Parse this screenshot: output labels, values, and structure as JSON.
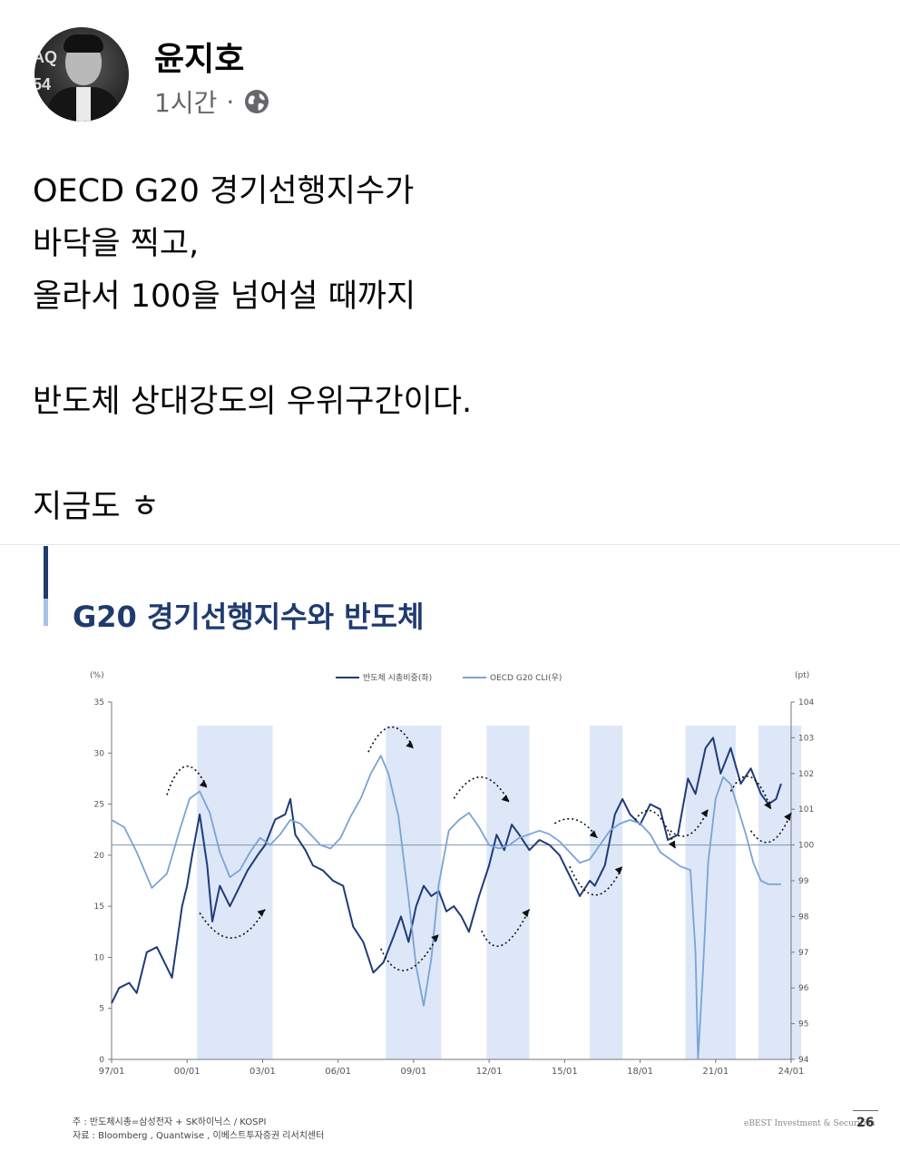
{
  "post": {
    "author": "윤지호",
    "time": "1시간",
    "separator": "·",
    "privacy_icon": "globe-icon",
    "avatar_badge": "AQ\n54",
    "lines": [
      "OECD G20 경기선행지수가",
      "바닥을 찍고,",
      "올라서 100을 넘어설 때까지",
      "",
      "반도체 상대강도의 우위구간이다.",
      "",
      "지금도 ㅎ"
    ]
  },
  "slide": {
    "title": "G20 경기선행지수와 반도체",
    "note_line1": "주 : 반도체시총=삼성전자 + SK하이닉스 / KOSPI",
    "note_line2": "자료 : Bloomberg , Quantwise , 이베스트투자증권 리서치센터",
    "brand": "eBEST Investment & Securities",
    "page": "26"
  },
  "chart_data": {
    "type": "line",
    "left_axis_unit": "(%)",
    "right_axis_unit": "(pt)",
    "left_ticks": [
      "35",
      "30",
      "25",
      "20",
      "15",
      "10",
      "5",
      "0"
    ],
    "right_ticks": [
      "104",
      "103",
      "102",
      "101",
      "100",
      "99",
      "98",
      "97",
      "96",
      "95",
      "94"
    ],
    "x_ticks": [
      "97/01",
      "00/01",
      "03/01",
      "06/01",
      "09/01",
      "12/01",
      "15/01",
      "18/01",
      "21/01",
      "24/01"
    ],
    "ylim_left": [
      0,
      35
    ],
    "ylim_right": [
      94,
      104
    ],
    "xlim": [
      1997.0,
      2024.0
    ],
    "reference_line_right": 100,
    "shaded_periods": [
      [
        2000.4,
        2003.4
      ],
      [
        2007.9,
        2010.1
      ],
      [
        2011.9,
        2013.6
      ],
      [
        2016.0,
        2017.3
      ],
      [
        2019.8,
        2021.8
      ],
      [
        2022.7,
        2024.4
      ]
    ],
    "series": [
      {
        "name": "반도체 시총비중(좌)",
        "axis": "left",
        "color": "#1f3b7a",
        "x": [
          1997.0,
          1997.3,
          1997.7,
          1998.0,
          1998.4,
          1998.8,
          1999.0,
          1999.4,
          1999.8,
          2000.0,
          2000.2,
          2000.5,
          2000.8,
          2001.0,
          2001.3,
          2001.7,
          2002.0,
          2002.4,
          2002.8,
          2003.1,
          2003.5,
          2003.9,
          2004.1,
          2004.3,
          2004.7,
          2005.0,
          2005.4,
          2005.8,
          2006.2,
          2006.6,
          2007.0,
          2007.4,
          2007.8,
          2008.2,
          2008.5,
          2008.8,
          2009.1,
          2009.4,
          2009.7,
          2010.0,
          2010.3,
          2010.6,
          2010.9,
          2011.2,
          2011.6,
          2012.0,
          2012.3,
          2012.6,
          2012.9,
          2013.2,
          2013.6,
          2014.0,
          2014.4,
          2014.8,
          2015.2,
          2015.6,
          2016.0,
          2016.2,
          2016.6,
          2017.0,
          2017.3,
          2017.6,
          2018.0,
          2018.4,
          2018.8,
          2019.1,
          2019.5,
          2019.9,
          2020.2,
          2020.6,
          2020.9,
          2021.2,
          2021.6,
          2022.0,
          2022.4,
          2022.8,
          2023.1,
          2023.4,
          2023.6
        ],
        "y": [
          5.5,
          7.0,
          7.5,
          6.5,
          10.5,
          11.0,
          10.0,
          8.0,
          15.0,
          17.0,
          20.0,
          24.0,
          19.0,
          13.5,
          17.0,
          15.0,
          16.5,
          18.5,
          20.0,
          21.0,
          23.5,
          24.0,
          25.5,
          22.0,
          20.5,
          19.0,
          18.5,
          17.5,
          17.0,
          13.0,
          11.5,
          8.5,
          9.5,
          12.0,
          14.0,
          11.5,
          15.0,
          17.0,
          16.0,
          16.5,
          14.5,
          15.0,
          14.0,
          12.5,
          16.0,
          19.0,
          22.0,
          20.5,
          23.0,
          22.0,
          20.5,
          21.5,
          21.0,
          20.0,
          18.0,
          16.0,
          17.5,
          17.0,
          19.0,
          24.0,
          25.5,
          24.0,
          23.0,
          25.0,
          24.5,
          21.5,
          22.0,
          27.5,
          26.0,
          30.5,
          31.5,
          28.0,
          30.5,
          27.0,
          28.5,
          26.0,
          25.0,
          25.5,
          27.0
        ]
      },
      {
        "name": "OECD G20 CLI(우)",
        "axis": "right",
        "color": "#7aa3d6",
        "x": [
          1997.0,
          1997.5,
          1998.0,
          1998.6,
          1999.2,
          1999.7,
          2000.1,
          2000.5,
          2000.9,
          2001.3,
          2001.7,
          2002.1,
          2002.5,
          2002.9,
          2003.3,
          2003.7,
          2004.1,
          2004.5,
          2004.9,
          2005.3,
          2005.7,
          2006.1,
          2006.5,
          2006.9,
          2007.3,
          2007.7,
          2008.0,
          2008.4,
          2008.8,
          2009.1,
          2009.4,
          2009.7,
          2010.0,
          2010.4,
          2010.8,
          2011.2,
          2011.6,
          2012.0,
          2012.4,
          2012.8,
          2013.2,
          2013.6,
          2014.0,
          2014.4,
          2014.8,
          2015.2,
          2015.6,
          2016.0,
          2016.4,
          2016.8,
          2017.2,
          2017.6,
          2018.0,
          2018.4,
          2018.8,
          2019.2,
          2019.6,
          2020.0,
          2020.2,
          2020.3,
          2020.5,
          2020.7,
          2021.0,
          2021.3,
          2021.6,
          2021.9,
          2022.2,
          2022.5,
          2022.8,
          2023.1,
          2023.4,
          2023.6
        ],
        "y": [
          100.7,
          100.5,
          99.8,
          98.8,
          99.2,
          100.4,
          101.3,
          101.5,
          100.9,
          99.8,
          99.1,
          99.3,
          99.8,
          100.2,
          100.0,
          100.3,
          100.7,
          100.6,
          100.3,
          100.0,
          99.9,
          100.2,
          100.8,
          101.3,
          102.0,
          102.5,
          102.0,
          100.8,
          98.5,
          96.6,
          95.5,
          96.8,
          98.9,
          100.4,
          100.7,
          100.9,
          100.5,
          100.0,
          99.9,
          100.0,
          100.2,
          100.3,
          100.4,
          100.3,
          100.1,
          99.8,
          99.5,
          99.6,
          100.0,
          100.4,
          100.6,
          100.7,
          100.6,
          100.3,
          99.8,
          99.6,
          99.4,
          99.3,
          97.0,
          94.0,
          96.5,
          99.5,
          101.3,
          101.9,
          101.7,
          101.0,
          100.3,
          99.5,
          99.0,
          98.9,
          98.9,
          98.9
        ]
      }
    ],
    "annotation_arrows": [
      {
        "kind": "peak",
        "x": [
          1999.2,
          1999.9,
          2000.8
        ],
        "y_right": [
          101.4,
          102.2,
          101.6
        ]
      },
      {
        "kind": "trough",
        "x": [
          2000.5,
          2001.8,
          2003.1
        ],
        "y_right": [
          98.1,
          97.4,
          98.2
        ]
      },
      {
        "kind": "peak",
        "x": [
          2007.2,
          2008.1,
          2009.0
        ],
        "y_right": [
          102.6,
          103.3,
          102.7
        ]
      },
      {
        "kind": "trough",
        "x": [
          2007.7,
          2008.6,
          2010.0
        ],
        "y_right": [
          97.1,
          96.5,
          97.5
        ]
      },
      {
        "kind": "peak",
        "x": [
          2010.6,
          2011.7,
          2012.8
        ],
        "y_right": [
          101.3,
          101.9,
          101.2
        ]
      },
      {
        "kind": "trough",
        "x": [
          2011.7,
          2012.4,
          2013.6
        ],
        "y_right": [
          97.6,
          97.2,
          98.2
        ]
      },
      {
        "kind": "peak",
        "x": [
          2014.6,
          2015.5,
          2016.3
        ],
        "y_right": [
          100.6,
          100.7,
          100.2
        ]
      },
      {
        "kind": "trough",
        "x": [
          2015.2,
          2016.2,
          2017.3
        ],
        "y_right": [
          99.4,
          98.6,
          99.4
        ]
      },
      {
        "kind": "peak",
        "x": [
          2017.8,
          2018.6,
          2019.4
        ],
        "y_right": [
          100.7,
          100.9,
          99.9
        ]
      },
      {
        "kind": "trough",
        "x": [
          2019.2,
          2020.0,
          2020.7
        ],
        "y_right": [
          100.4,
          100.3,
          101.0
        ]
      },
      {
        "kind": "peak",
        "x": [
          2021.6,
          2022.4,
          2023.2
        ],
        "y_right": [
          101.5,
          101.9,
          101.0
        ]
      },
      {
        "kind": "trough",
        "x": [
          2022.4,
          2023.2,
          2024.0
        ],
        "y_right": [
          100.4,
          100.1,
          100.9
        ]
      }
    ]
  }
}
